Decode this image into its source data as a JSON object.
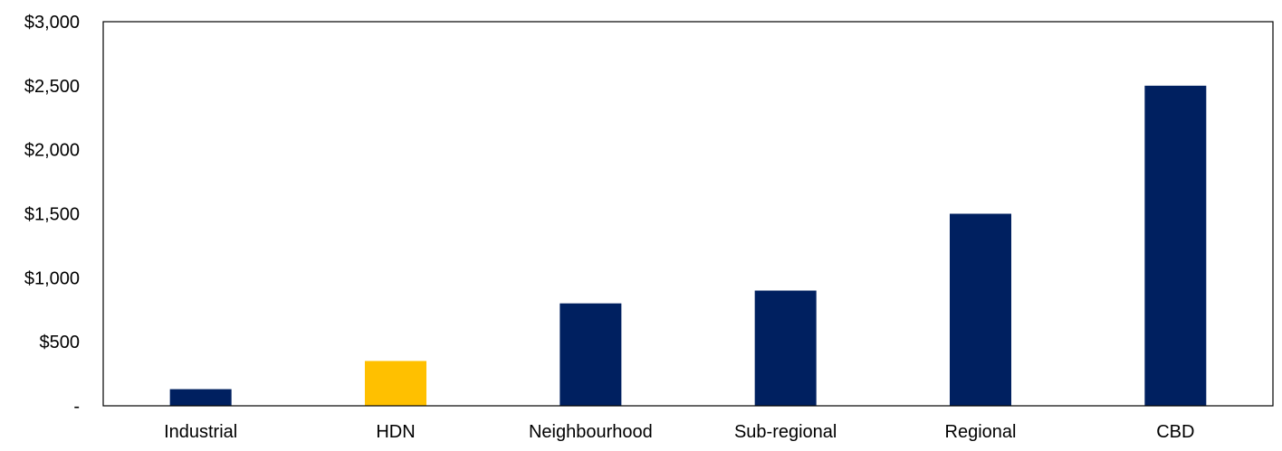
{
  "chart_data": {
    "type": "bar",
    "categories": [
      "Industrial",
      "HDN",
      "Neighbourhood",
      "Sub-regional",
      "Regional",
      "CBD"
    ],
    "values": [
      130,
      350,
      800,
      900,
      1500,
      2500
    ],
    "bar_colors": [
      "#002060",
      "#FFC000",
      "#002060",
      "#002060",
      "#002060",
      "#002060"
    ],
    "yticks": [
      {
        "value": 0,
        "label": "-"
      },
      {
        "value": 500,
        "label": "$500"
      },
      {
        "value": 1000,
        "label": "$1,000"
      },
      {
        "value": 1500,
        "label": "$1,500"
      },
      {
        "value": 2000,
        "label": "$2,000"
      },
      {
        "value": 2500,
        "label": "$2,500"
      },
      {
        "value": 3000,
        "label": "$3,000"
      }
    ],
    "ylim": [
      0,
      3000
    ],
    "grid": false,
    "legend": "none",
    "title": "",
    "xlabel": "",
    "ylabel": ""
  }
}
